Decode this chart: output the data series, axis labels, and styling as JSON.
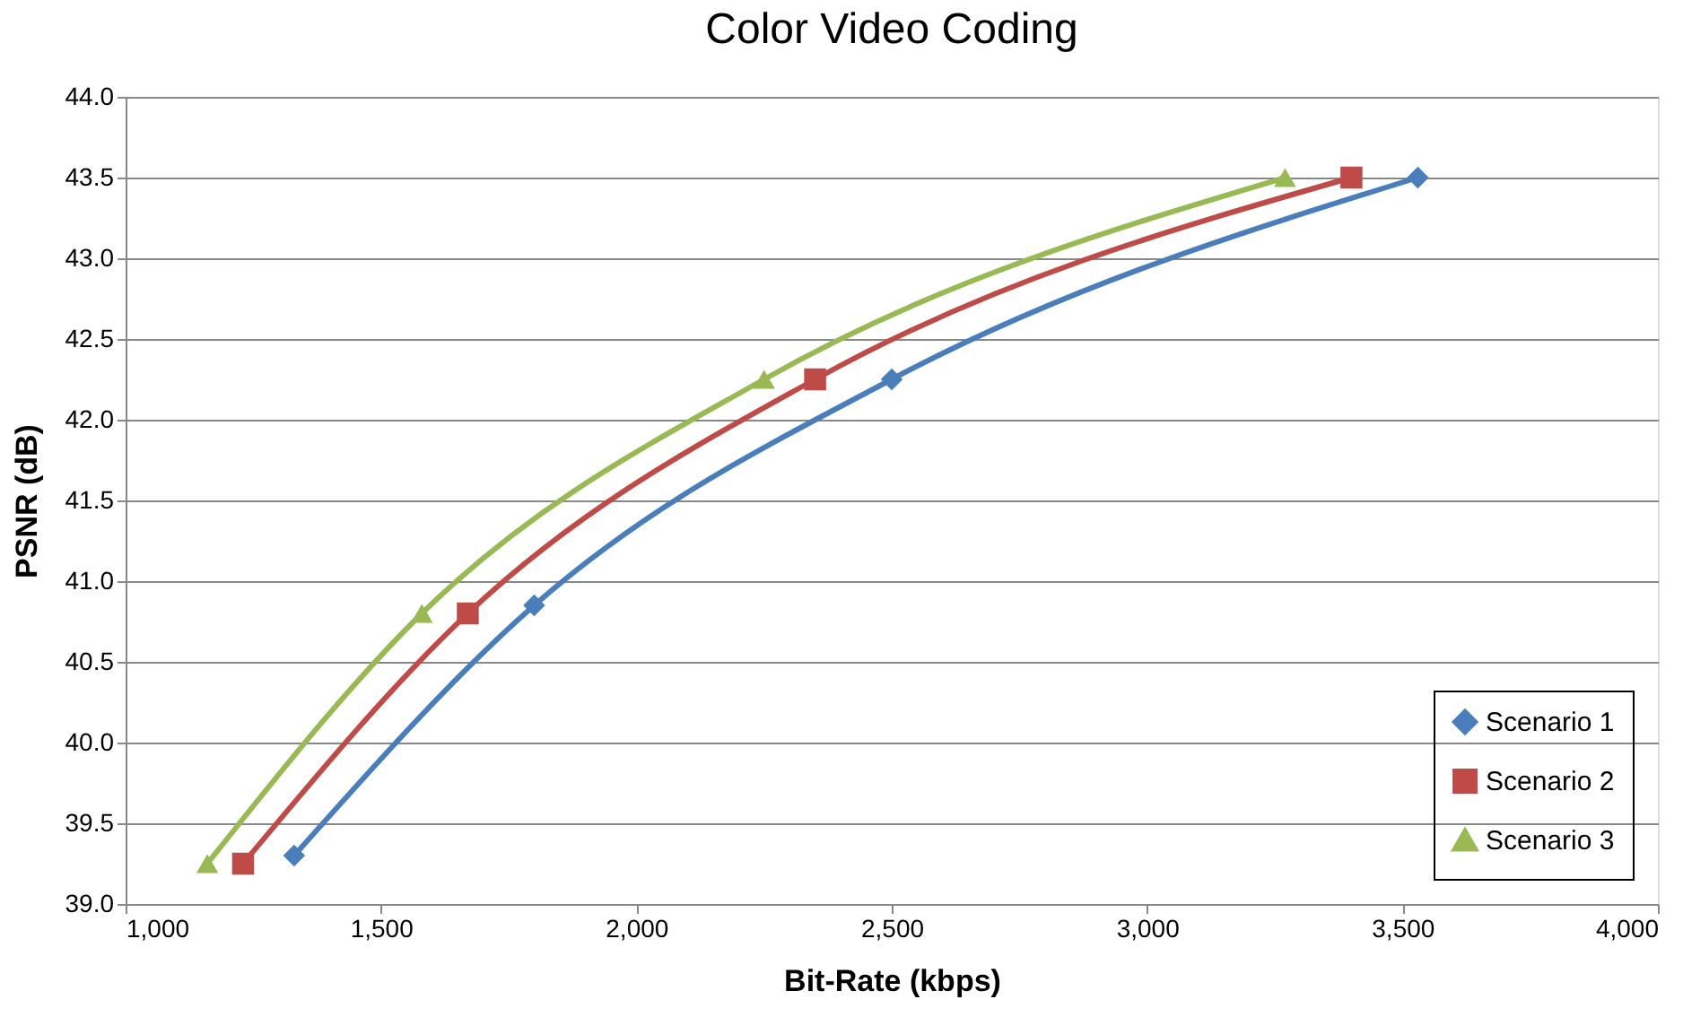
{
  "chart_data": {
    "type": "line",
    "title": "Color Video Coding",
    "xlabel": "Bit-Rate (kbps)",
    "ylabel": "PSNR (dB)",
    "series": [
      {
        "name": "Scenario 1",
        "color": "#4a7ebb",
        "marker": "diamond",
        "x": [
          1330,
          1800,
          2500,
          3530
        ],
        "values": [
          39.3,
          40.85,
          42.25,
          43.5
        ]
      },
      {
        "name": "Scenario 2",
        "color": "#be4b48",
        "marker": "square",
        "x": [
          1230,
          1670,
          2350,
          3400
        ],
        "values": [
          39.25,
          40.8,
          42.25,
          43.5
        ]
      },
      {
        "name": "Scenario 3",
        "color": "#98b954",
        "marker": "triangle",
        "x": [
          1160,
          1580,
          2250,
          3270
        ],
        "values": [
          39.25,
          40.8,
          42.25,
          43.5
        ]
      }
    ],
    "xlim": [
      1000,
      4000
    ],
    "xticks": [
      {
        "value": 1000,
        "label": "1,000"
      },
      {
        "value": 1500,
        "label": "1,500"
      },
      {
        "value": 2000,
        "label": "2,000"
      },
      {
        "value": 2500,
        "label": "2,500"
      },
      {
        "value": 3000,
        "label": "3,000"
      },
      {
        "value": 3500,
        "label": "3,500"
      },
      {
        "value": 4000,
        "label": "4,000"
      }
    ],
    "ylim": [
      39.0,
      44.0
    ],
    "yticks": [
      {
        "value": 39,
        "label": "39.0"
      },
      {
        "value": 39.5,
        "label": "39.5"
      },
      {
        "value": 40,
        "label": "40.0"
      },
      {
        "value": 40.5,
        "label": "40.5"
      },
      {
        "value": 41,
        "label": "41.0"
      },
      {
        "value": 41.5,
        "label": "41.5"
      },
      {
        "value": 42,
        "label": "42.0"
      },
      {
        "value": 42.5,
        "label": "42.5"
      },
      {
        "value": 43,
        "label": "43.0"
      },
      {
        "value": 43.5,
        "label": "43.5"
      },
      {
        "value": 44,
        "label": "44.0"
      }
    ],
    "grid": "y",
    "legend": "bottom right",
    "line_style": "solid"
  }
}
